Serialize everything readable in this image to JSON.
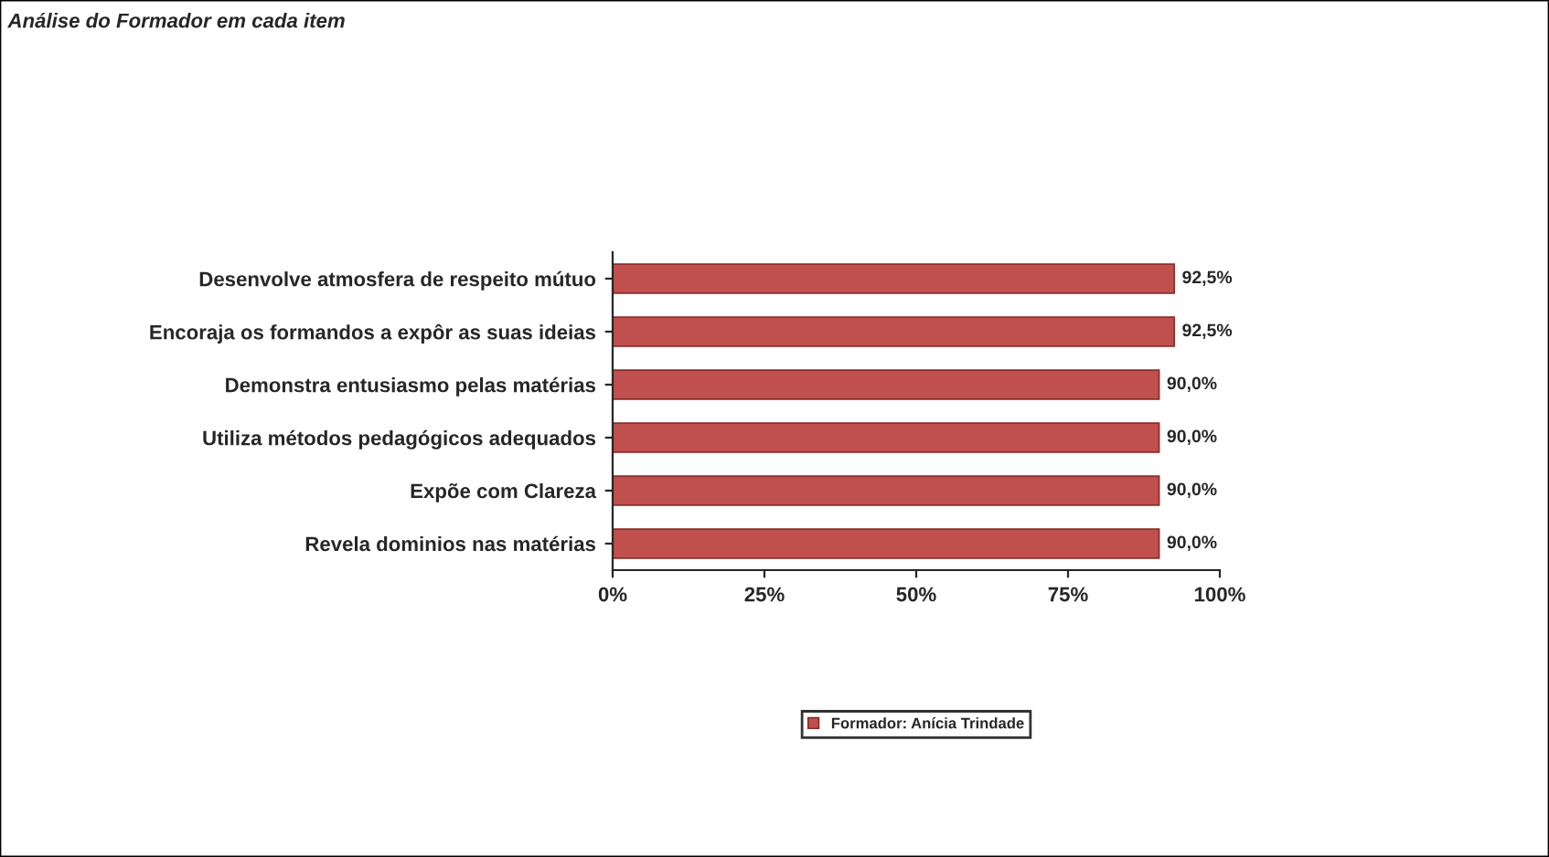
{
  "chart_data": {
    "type": "bar",
    "orientation": "horizontal",
    "title": "Análise do Formador em cada item",
    "categories": [
      "Desenvolve atmosfera de respeito mútuo",
      "Encoraja os formandos a expôr as suas ideias",
      "Demonstra entusiasmo pelas matérias",
      "Utiliza métodos pedagógicos adequados",
      "Expõe com Clareza",
      "Revela dominios nas matérias"
    ],
    "series": [
      {
        "name": "Formador: Anícia Trindade",
        "color": "#c0504d",
        "values": [
          92.5,
          92.5,
          90.0,
          90.0,
          90.0,
          90.0
        ],
        "value_labels": [
          "92,5%",
          "92,5%",
          "90,0%",
          "90,0%",
          "90,0%",
          "90,0%"
        ]
      }
    ],
    "xlim": [
      0,
      100
    ],
    "xticks": [
      {
        "value": 0,
        "label": "0%"
      },
      {
        "value": 25,
        "label": "25%"
      },
      {
        "value": 50,
        "label": "50%"
      },
      {
        "value": 75,
        "label": "75%"
      },
      {
        "value": 100,
        "label": "100%"
      }
    ],
    "grid": false,
    "legend": "bottom"
  }
}
